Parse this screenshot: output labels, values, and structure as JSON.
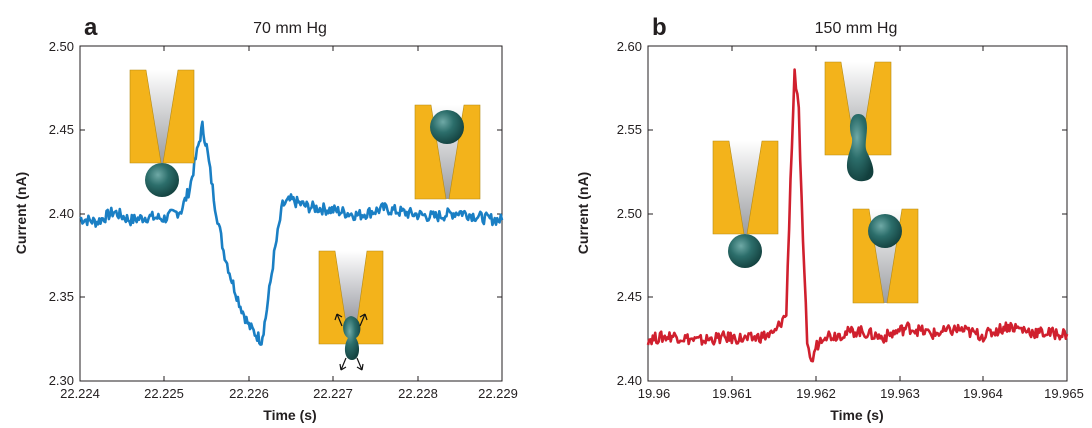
{
  "colors": {
    "series_a": "#1a7fc4",
    "series_b": "#d0202e",
    "pipette": "#f3b31b",
    "particle": "#1f5f5c"
  },
  "chart_data": [
    {
      "type": "line",
      "panel_letter": "a",
      "title": "70 mm Hg",
      "xlabel": "Time (s)",
      "ylabel": "Current (nA)",
      "xlim": [
        22.224,
        22.229
      ],
      "ylim": [
        2.3,
        2.5
      ],
      "x_ticks": [
        "22.224",
        "22.225",
        "22.226",
        "22.227",
        "22.228",
        "22.229"
      ],
      "y_ticks": [
        "2.30",
        "2.35",
        "2.40",
        "2.45",
        "2.50"
      ],
      "grid": false,
      "series": [
        {
          "color": "#1a7fc4",
          "x": [
            22.224,
            22.2242,
            22.2244,
            22.2246,
            22.2248,
            22.225,
            22.2252,
            22.2253,
            22.2254,
            22.22545,
            22.2255,
            22.2256,
            22.2257,
            22.2258,
            22.2259,
            22.226,
            22.2261,
            22.22615,
            22.2262,
            22.2263,
            22.2264,
            22.2265,
            22.2267,
            22.227,
            22.2273,
            22.2276,
            22.2279,
            22.2282,
            22.2285,
            22.2288,
            22.229
          ],
          "y": [
            2.397,
            2.395,
            2.401,
            2.396,
            2.398,
            2.397,
            2.402,
            2.415,
            2.44,
            2.452,
            2.44,
            2.405,
            2.378,
            2.36,
            2.345,
            2.333,
            2.327,
            2.324,
            2.338,
            2.375,
            2.405,
            2.408,
            2.404,
            2.402,
            2.399,
            2.403,
            2.4,
            2.398,
            2.401,
            2.397,
            2.396
          ]
        }
      ]
    },
    {
      "type": "line",
      "panel_letter": "b",
      "title": "150 mm Hg",
      "xlabel": "Time (s)",
      "ylabel": "Current (nA)",
      "xlim": [
        19.96,
        19.965
      ],
      "ylim": [
        2.4,
        2.6
      ],
      "x_ticks": [
        "19.96",
        "19.961",
        "19.962",
        "19.963",
        "19.964",
        "19.965"
      ],
      "y_ticks": [
        "2.40",
        "2.45",
        "2.50",
        "2.55",
        "2.60"
      ],
      "grid": false,
      "series": [
        {
          "color": "#d0202e",
          "x": [
            19.96,
            19.9603,
            19.9606,
            19.9609,
            19.9612,
            19.9615,
            19.96165,
            19.9617,
            19.96175,
            19.9618,
            19.96185,
            19.9619,
            19.96195,
            19.962,
            19.9621,
            19.9622,
            19.9625,
            19.9628,
            19.9631,
            19.9634,
            19.9637,
            19.964,
            19.9643,
            19.9646,
            19.965
          ],
          "y": [
            2.425,
            2.427,
            2.424,
            2.426,
            2.425,
            2.428,
            2.44,
            2.52,
            2.585,
            2.56,
            2.48,
            2.425,
            2.41,
            2.42,
            2.428,
            2.427,
            2.43,
            2.426,
            2.432,
            2.428,
            2.431,
            2.427,
            2.433,
            2.429,
            2.428
          ]
        }
      ]
    }
  ]
}
